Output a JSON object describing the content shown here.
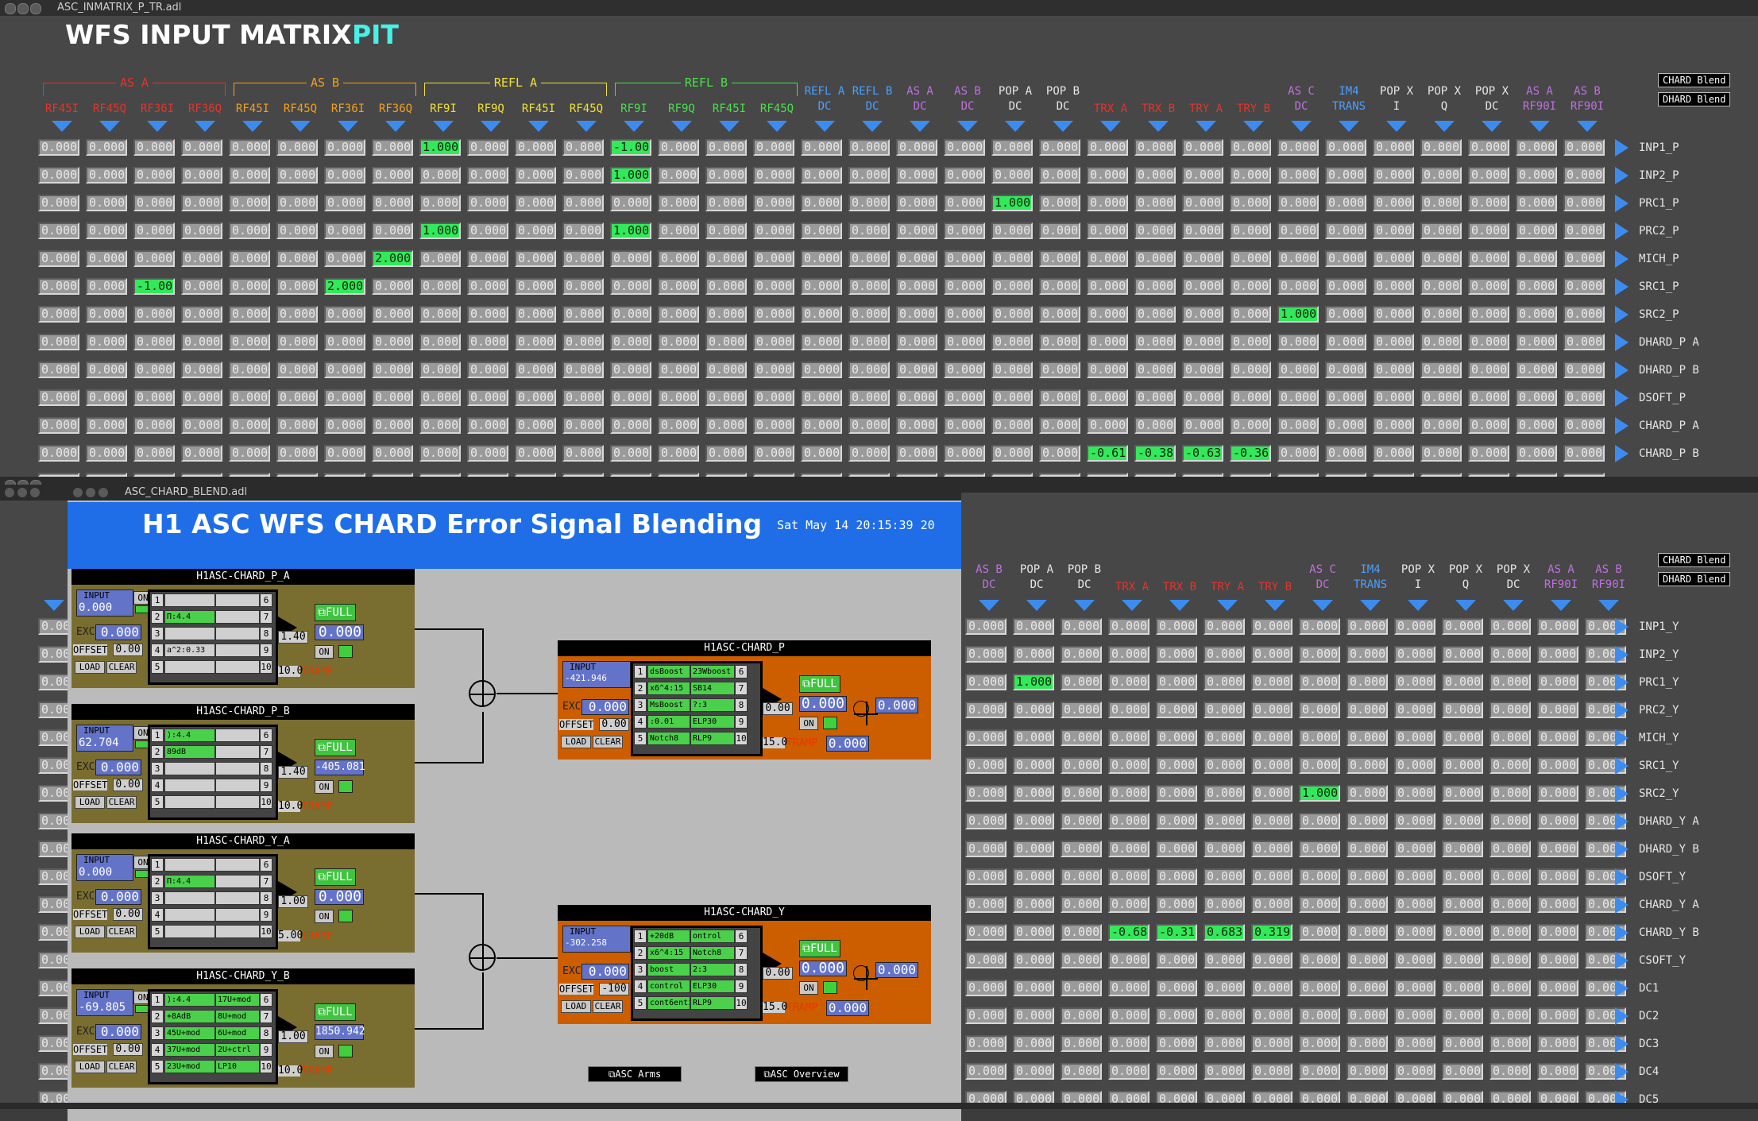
{
  "top_window": {
    "title": "ASC_INMATRIX_P_TR.adl",
    "heading": "WFS INPUT MATRIX",
    "dof": "PIT",
    "buttons": [
      "CHARD Blend",
      "DHARD Blend"
    ],
    "groups": [
      {
        "label": "AS A",
        "color": "#e8322a"
      },
      {
        "label": "AS B",
        "color": "#f0a020"
      },
      {
        "label": "REFL A",
        "color": "#f0e030"
      },
      {
        "label": "REFL B",
        "color": "#48e048"
      }
    ],
    "columns": [
      {
        "l1": "RF45I",
        "l2": "",
        "c": "#e8322a"
      },
      {
        "l1": "RF45Q",
        "l2": "",
        "c": "#e8322a"
      },
      {
        "l1": "RF36I",
        "l2": "",
        "c": "#e8322a"
      },
      {
        "l1": "RF36Q",
        "l2": "",
        "c": "#e8322a"
      },
      {
        "l1": "RF45I",
        "l2": "",
        "c": "#f0a020"
      },
      {
        "l1": "RF45Q",
        "l2": "",
        "c": "#f0a020"
      },
      {
        "l1": "RF36I",
        "l2": "",
        "c": "#f0a020"
      },
      {
        "l1": "RF36Q",
        "l2": "",
        "c": "#f0a020"
      },
      {
        "l1": "RF9I",
        "l2": "",
        "c": "#f0e030"
      },
      {
        "l1": "RF9Q",
        "l2": "",
        "c": "#f0e030"
      },
      {
        "l1": "RF45I",
        "l2": "",
        "c": "#f0e030"
      },
      {
        "l1": "RF45Q",
        "l2": "",
        "c": "#f0e030"
      },
      {
        "l1": "RF9I",
        "l2": "",
        "c": "#48e048"
      },
      {
        "l1": "RF9Q",
        "l2": "",
        "c": "#48e048"
      },
      {
        "l1": "RF45I",
        "l2": "",
        "c": "#48e048"
      },
      {
        "l1": "RF45Q",
        "l2": "",
        "c": "#48e048"
      },
      {
        "l1": "REFL A",
        "l2": "DC",
        "c": "#4aa0ff"
      },
      {
        "l1": "REFL B",
        "l2": "DC",
        "c": "#4aa0ff"
      },
      {
        "l1": "AS A",
        "l2": "DC",
        "c": "#c070e0"
      },
      {
        "l1": "AS B",
        "l2": "DC",
        "c": "#c070e0"
      },
      {
        "l1": "POP A",
        "l2": "DC",
        "c": "#e6e6e6"
      },
      {
        "l1": "POP B",
        "l2": "DC",
        "c": "#e6e6e6"
      },
      {
        "l1": "TRX A",
        "l2": "",
        "c": "#e8322a"
      },
      {
        "l1": "TRX B",
        "l2": "",
        "c": "#e8322a"
      },
      {
        "l1": "TRY A",
        "l2": "",
        "c": "#e8322a"
      },
      {
        "l1": "TRY B",
        "l2": "",
        "c": "#e8322a"
      },
      {
        "l1": "AS C",
        "l2": "DC",
        "c": "#c070e0"
      },
      {
        "l1": "IM4",
        "l2": "TRANS",
        "c": "#4aa0ff"
      },
      {
        "l1": "POP X",
        "l2": "I",
        "c": "#e6e6e6"
      },
      {
        "l1": "POP X",
        "l2": "Q",
        "c": "#e6e6e6"
      },
      {
        "l1": "POP X",
        "l2": "DC",
        "c": "#e6e6e6"
      },
      {
        "l1": "AS A",
        "l2": "RF90I",
        "c": "#c070e0"
      },
      {
        "l1": "AS B",
        "l2": "RF90I",
        "c": "#c070e0"
      }
    ],
    "rows": [
      "INP1_P",
      "INP2_P",
      "PRC1_P",
      "PRC2_P",
      "MICH_P",
      "SRC1_P",
      "SRC2_P",
      "DHARD_P A",
      "DHARD_P B",
      "DSOFT_P",
      "CHARD_P A",
      "CHARD_P B"
    ],
    "default_cell": "0.000",
    "nonzero": [
      {
        "r": 0,
        "c": 8,
        "v": "1.000"
      },
      {
        "r": 0,
        "c": 12,
        "v": "-1.00"
      },
      {
        "r": 1,
        "c": 12,
        "v": "1.000"
      },
      {
        "r": 2,
        "c": 20,
        "v": "1.000"
      },
      {
        "r": 3,
        "c": 8,
        "v": "1.000"
      },
      {
        "r": 3,
        "c": 12,
        "v": "1.000"
      },
      {
        "r": 4,
        "c": 7,
        "v": "2.000"
      },
      {
        "r": 5,
        "c": 2,
        "v": "-1.00"
      },
      {
        "r": 5,
        "c": 6,
        "v": "2.000"
      },
      {
        "r": 6,
        "c": 26,
        "v": "1.000"
      },
      {
        "r": 11,
        "c": 22,
        "v": "-0.619"
      },
      {
        "r": 11,
        "c": 23,
        "v": "-0.38"
      },
      {
        "r": 11,
        "c": 24,
        "v": "-0.639"
      },
      {
        "r": 11,
        "c": 25,
        "v": "-0.36"
      }
    ]
  },
  "bottom_window": {
    "title": "ASC_CHARD_BLEND.adl",
    "buttons": [
      "CHARD Blend",
      "DHARD Blend"
    ],
    "columns": [
      {
        "l1": "AS B",
        "l2": "DC",
        "c": "#c070e0"
      },
      {
        "l1": "POP A",
        "l2": "DC",
        "c": "#e6e6e6"
      },
      {
        "l1": "POP B",
        "l2": "DC",
        "c": "#e6e6e6"
      },
      {
        "l1": "TRX A",
        "l2": "",
        "c": "#e8322a"
      },
      {
        "l1": "TRX B",
        "l2": "",
        "c": "#e8322a"
      },
      {
        "l1": "TRY A",
        "l2": "",
        "c": "#e8322a"
      },
      {
        "l1": "TRY B",
        "l2": "",
        "c": "#e8322a"
      },
      {
        "l1": "AS C",
        "l2": "DC",
        "c": "#c070e0"
      },
      {
        "l1": "IM4",
        "l2": "TRANS",
        "c": "#4aa0ff"
      },
      {
        "l1": "POP X",
        "l2": "I",
        "c": "#e6e6e6"
      },
      {
        "l1": "POP X",
        "l2": "Q",
        "c": "#e6e6e6"
      },
      {
        "l1": "POP X",
        "l2": "DC",
        "c": "#e6e6e6"
      },
      {
        "l1": "AS A",
        "l2": "RF90I",
        "c": "#c070e0"
      },
      {
        "l1": "AS B",
        "l2": "RF90I",
        "c": "#c070e0"
      }
    ],
    "rows": [
      "INP1_Y",
      "INP2_Y",
      "PRC1_Y",
      "PRC2_Y",
      "MICH_Y",
      "SRC1_Y",
      "SRC2_Y",
      "DHARD_Y A",
      "DHARD_Y B",
      "DSOFT_Y",
      "CHARD_Y A",
      "CHARD_Y B",
      "CSOFT_Y",
      "DC1",
      "DC2",
      "DC3",
      "DC4",
      "DC5"
    ],
    "default_cell": "0.000",
    "nonzero": [
      {
        "r": 2,
        "c": 1,
        "v": "1.000"
      },
      {
        "r": 6,
        "c": 7,
        "v": "1.000"
      },
      {
        "r": 11,
        "c": 3,
        "v": "-0.684"
      },
      {
        "r": 11,
        "c": 4,
        "v": "-0.316"
      },
      {
        "r": 11,
        "c": 5,
        "v": "0.683"
      },
      {
        "r": 11,
        "c": 6,
        "v": "0.319"
      }
    ]
  },
  "blend": {
    "title": "H1 ASC WFS CHARD Error Signal Blending",
    "date": "Sat May 14 20:15:39 20",
    "nav": [
      "ASC Arms",
      "ASC Overview"
    ],
    "filters_left": [
      {
        "name": "H1ASC-CHARD_P_A",
        "input": "0.000",
        "exc": "0.000",
        "offset": "0.00",
        "gain": "1.40",
        "out": "0.000",
        "tramp": "10.0",
        "f": [
          "",
          "Π:4.4",
          "",
          "a^2:0.33",
          "",
          "",
          "",
          "",
          "",
          ""
        ],
        "on": [
          false,
          true,
          false,
          false,
          false,
          false,
          false,
          false,
          false,
          false
        ]
      },
      {
        "name": "H1ASC-CHARD_P_B",
        "input": "62.704",
        "exc": "0.000",
        "offset": "0.00",
        "gain": "1.40",
        "out": "-405.081",
        "tramp": "10.0",
        "f": [
          "):4.4",
          "89dB",
          "",
          "",
          "",
          "",
          "",
          "",
          "",
          ""
        ],
        "on": [
          true,
          true,
          false,
          false,
          false,
          false,
          false,
          false,
          false,
          false
        ]
      },
      {
        "name": "H1ASC-CHARD_Y_A",
        "input": "0.000",
        "exc": "0.000",
        "offset": "0.00",
        "gain": "1.00",
        "out": "0.000",
        "tramp": "5.00",
        "f": [
          "",
          "Π:4.4",
          "",
          "",
          "",
          "",
          "",
          "",
          "",
          ""
        ],
        "on": [
          false,
          true,
          false,
          false,
          false,
          false,
          false,
          false,
          false,
          false
        ]
      },
      {
        "name": "H1ASC-CHARD_Y_B",
        "input": "-69.805",
        "exc": "0.000",
        "offset": "0.00",
        "gain": "1.00",
        "out": "1850.942",
        "tramp": "10.0",
        "f": [
          "):4.4",
          "+8AdB",
          "45U+mod",
          "37U+mod",
          "23U+mod",
          "17U+mod",
          "8U+mod",
          "6U+mod",
          "2U+ctrl",
          "LP10"
        ],
        "on": [
          true,
          true,
          true,
          true,
          true,
          true,
          true,
          true,
          true,
          true
        ]
      }
    ],
    "filters_right": [
      {
        "name": "H1ASC-CHARD_P",
        "input": "-421.946",
        "exc": "0.000",
        "offset": "0.00",
        "gain": "0.00",
        "out": "0.000",
        "out2": "0.000",
        "mon": "0.000",
        "tramp": "15.0",
        "f": [
          "dsBoost",
          "x6^4:15",
          "MsBoost",
          ":0.01",
          "Notch8",
          "23Wboost",
          "SB14",
          "?:3",
          "ELP30",
          "RLP9"
        ],
        "on": [
          true,
          true,
          true,
          true,
          true,
          true,
          true,
          true,
          true,
          true
        ]
      },
      {
        "name": "H1ASC-CHARD_Y",
        "input": "-302.258",
        "exc": "0.000",
        "offset": "-100",
        "gain": "0.00",
        "out": "0.000",
        "out2": "0.000",
        "mon": "0.000",
        "tramp": "15.0",
        "f": [
          "+20dB",
          "x6^4:15",
          "boost",
          "control",
          "cont6enti",
          "ontrol",
          "Notch8",
          "2:3",
          "ELP30",
          "RLP9"
        ],
        "on": [
          true,
          true,
          true,
          true,
          true,
          true,
          true,
          true,
          true,
          true
        ]
      }
    ],
    "labels": {
      "input": "INPUT",
      "exc": "EXC",
      "offset": "OFFSET",
      "load": "LOAD",
      "clear": "CLEAR",
      "on": "ON",
      "full": "FULL",
      "tramp": "TRAMP"
    }
  }
}
